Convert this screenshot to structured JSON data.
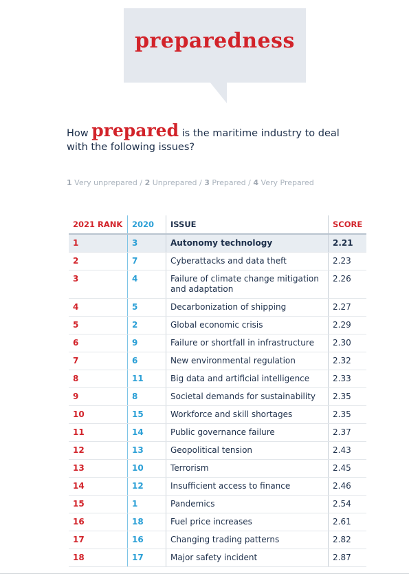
{
  "header": {
    "title": "preparedness"
  },
  "question": {
    "before": "How",
    "emphasis": "prepared",
    "after": "is the maritime industry to deal with the following issues?"
  },
  "scale": {
    "separator": "/",
    "items": [
      {
        "num": "1",
        "label": "Very unprepared"
      },
      {
        "num": "2",
        "label": "Unprepared"
      },
      {
        "num": "3",
        "label": "Prepared"
      },
      {
        "num": "4",
        "label": "Very Prepared"
      }
    ]
  },
  "table": {
    "columns": [
      "2021 RANK",
      "2020",
      "ISSUE",
      "SCORE"
    ],
    "rows": [
      [
        1,
        3,
        "Autonomy technology",
        "2.21"
      ],
      [
        2,
        7,
        "Cyberattacks and data theft",
        "2.23"
      ],
      [
        3,
        4,
        "Failure of climate change mitigation and adaptation",
        "2.26"
      ],
      [
        4,
        5,
        "Decarbonization of shipping",
        "2.27"
      ],
      [
        5,
        2,
        "Global economic crisis",
        "2.29"
      ],
      [
        6,
        9,
        "Failure or shortfall in infrastructure",
        "2.30"
      ],
      [
        7,
        6,
        "New environmental regulation",
        "2.32"
      ],
      [
        8,
        11,
        "Big data and artificial intelligence",
        "2.33"
      ],
      [
        9,
        8,
        "Societal demands for sustainability",
        "2.35"
      ],
      [
        10,
        15,
        "Workforce and skill shortages",
        "2.35"
      ],
      [
        11,
        14,
        "Public governance failure",
        "2.37"
      ],
      [
        12,
        13,
        "Geopolitical tension",
        "2.43"
      ],
      [
        13,
        10,
        "Terrorism",
        "2.45"
      ],
      [
        14,
        12,
        "Insufficient access to finance",
        "2.46"
      ],
      [
        15,
        1,
        "Pandemics",
        "2.54"
      ],
      [
        16,
        18,
        "Fuel price increases",
        "2.61"
      ],
      [
        17,
        16,
        "Changing trading patterns",
        "2.82"
      ],
      [
        18,
        17,
        "Major safety incident",
        "2.87"
      ]
    ]
  }
}
